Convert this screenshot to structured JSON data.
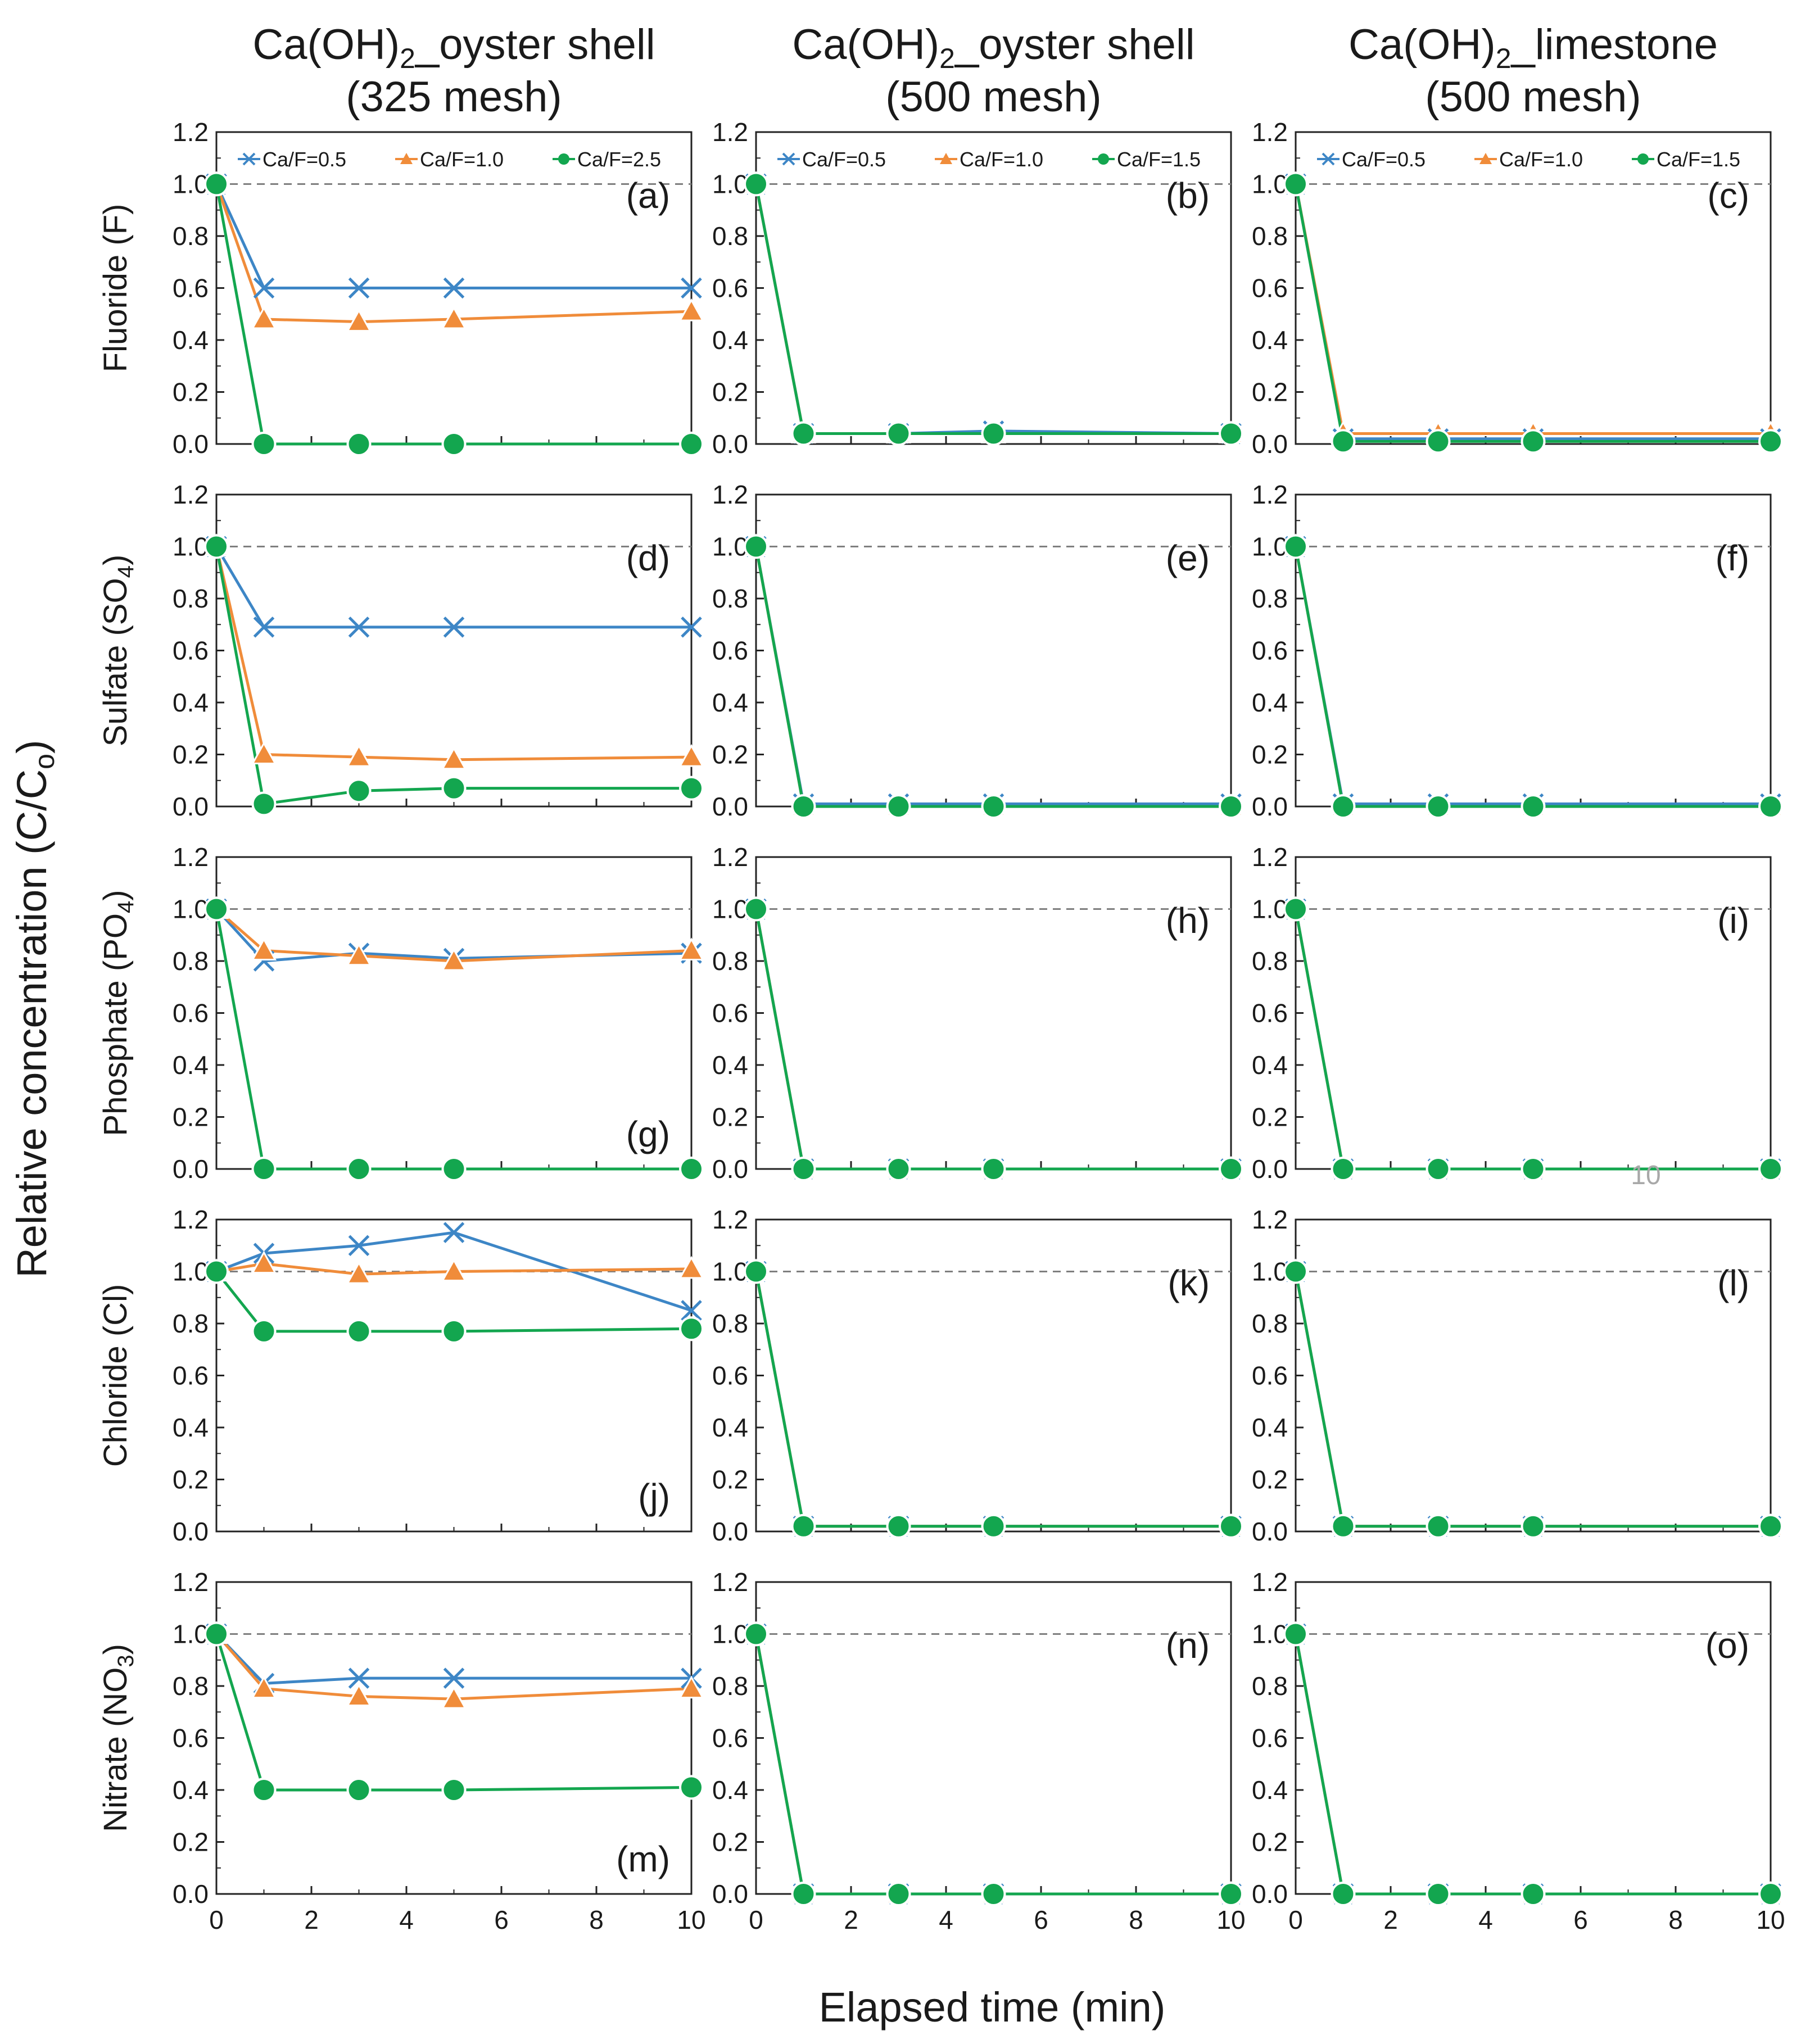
{
  "figure": {
    "y_axis_title": "Relative concentration (C/C",
    "y_axis_title_sub": "o",
    "y_axis_title_end": ")",
    "x_axis_title": "Elapsed time (min)",
    "stray_text": "10"
  },
  "columns": [
    {
      "title": "Ca(OH)",
      "title_sub": "2",
      "title_rest": "_oyster shell",
      "subtitle": "(325 mesh)"
    },
    {
      "title": "Ca(OH)",
      "title_sub": "2",
      "title_rest": "_oyster shell",
      "subtitle": "(500 mesh)"
    },
    {
      "title": "Ca(OH)",
      "title_sub": "2",
      "title_rest": "_limestone",
      "subtitle": "(500 mesh)"
    }
  ],
  "rows": [
    {
      "label": "Fluoride (F)",
      "label_sub": "",
      "label_end": ""
    },
    {
      "label": "Sulfate (SO",
      "label_sub": "4",
      "label_end": ")"
    },
    {
      "label": "Phosphate (PO",
      "label_sub": "4",
      "label_end": ")"
    },
    {
      "label": "Chloride (Cl)",
      "label_sub": "",
      "label_end": ""
    },
    {
      "label": "Nitrate (NO",
      "label_sub": "3",
      "label_end": ")"
    }
  ],
  "colors": {
    "series_0_5": "#3d86c6",
    "series_1_0": "#f08c3a",
    "series_high": "#13a64f",
    "reference_line": "#7f7f7f"
  },
  "chart_data": {
    "type": "line",
    "layout": "5 rows x 3 columns of panels",
    "x": [
      0,
      1,
      3,
      5,
      10
    ],
    "xlim": [
      0,
      10
    ],
    "xticks": [
      "0",
      "2",
      "4",
      "6",
      "8",
      "10"
    ],
    "ylim": [
      0,
      1.2
    ],
    "yticks": [
      "0.0",
      "0.2",
      "0.4",
      "0.6",
      "0.8",
      "1.0",
      "1.2"
    ],
    "reference_line_y": 1.0,
    "grid": false,
    "legend_location": "top inside panel, first row only",
    "panels": [
      {
        "label": "(a)",
        "label_pos": "top-right",
        "legend": true,
        "series": [
          {
            "name": "Ca/F=0.5",
            "marker": "x",
            "values": [
              1.0,
              0.6,
              0.6,
              0.6,
              0.6
            ]
          },
          {
            "name": "Ca/F=1.0",
            "marker": "triangle",
            "values": [
              1.0,
              0.48,
              0.47,
              0.48,
              0.51
            ]
          },
          {
            "name": "Ca/F=2.5",
            "marker": "circle",
            "values": [
              1.0,
              0.0,
              0.0,
              0.0,
              0.0
            ]
          }
        ]
      },
      {
        "label": "(b)",
        "label_pos": "top-right",
        "legend": true,
        "series": [
          {
            "name": "Ca/F=0.5",
            "marker": "x",
            "values": [
              1.0,
              0.04,
              0.04,
              0.05,
              0.04
            ]
          },
          {
            "name": "Ca/F=1.0",
            "marker": "triangle",
            "values": [
              1.0,
              0.04,
              0.04,
              0.04,
              0.04
            ]
          },
          {
            "name": "Ca/F=1.5",
            "marker": "circle",
            "values": [
              1.0,
              0.04,
              0.04,
              0.04,
              0.04
            ]
          }
        ]
      },
      {
        "label": "(c)",
        "label_pos": "top-right",
        "legend": true,
        "series": [
          {
            "name": "Ca/F=0.5",
            "marker": "x",
            "values": [
              1.0,
              0.02,
              0.02,
              0.02,
              0.02
            ]
          },
          {
            "name": "Ca/F=1.0",
            "marker": "triangle",
            "values": [
              1.0,
              0.04,
              0.04,
              0.04,
              0.04
            ]
          },
          {
            "name": "Ca/F=1.5",
            "marker": "circle",
            "values": [
              1.0,
              0.01,
              0.01,
              0.01,
              0.01
            ]
          }
        ]
      },
      {
        "label": "(d)",
        "label_pos": "top-right",
        "legend": false,
        "series": [
          {
            "name": "Ca/F=0.5",
            "marker": "x",
            "values": [
              1.0,
              0.69,
              0.69,
              0.69,
              0.69
            ]
          },
          {
            "name": "Ca/F=1.0",
            "marker": "triangle",
            "values": [
              1.0,
              0.2,
              0.19,
              0.18,
              0.19
            ]
          },
          {
            "name": "Ca/F=2.5",
            "marker": "circle",
            "values": [
              1.0,
              0.01,
              0.06,
              0.07,
              0.07
            ]
          }
        ]
      },
      {
        "label": "(e)",
        "label_pos": "top-right",
        "legend": false,
        "series": [
          {
            "name": "Ca/F=0.5",
            "marker": "x",
            "values": [
              1.0,
              0.01,
              0.01,
              0.01,
              0.01
            ]
          },
          {
            "name": "Ca/F=1.0",
            "marker": "triangle",
            "values": [
              1.0,
              0.0,
              0.0,
              0.0,
              0.0
            ]
          },
          {
            "name": "Ca/F=1.5",
            "marker": "circle",
            "values": [
              1.0,
              0.0,
              0.0,
              0.0,
              0.0
            ]
          }
        ]
      },
      {
        "label": "(f)",
        "label_pos": "top-right",
        "legend": false,
        "series": [
          {
            "name": "Ca/F=0.5",
            "marker": "x",
            "values": [
              1.0,
              0.01,
              0.01,
              0.01,
              0.01
            ]
          },
          {
            "name": "Ca/F=1.0",
            "marker": "triangle",
            "values": [
              1.0,
              0.0,
              0.0,
              0.0,
              0.0
            ]
          },
          {
            "name": "Ca/F=1.5",
            "marker": "circle",
            "values": [
              1.0,
              0.0,
              0.0,
              0.0,
              0.0
            ]
          }
        ]
      },
      {
        "label": "(g)",
        "label_pos": "bottom-right",
        "legend": false,
        "series": [
          {
            "name": "Ca/F=0.5",
            "marker": "x",
            "values": [
              1.0,
              0.8,
              0.83,
              0.81,
              0.83
            ]
          },
          {
            "name": "Ca/F=1.0",
            "marker": "triangle",
            "values": [
              1.0,
              0.84,
              0.82,
              0.8,
              0.84
            ]
          },
          {
            "name": "Ca/F=2.5",
            "marker": "circle",
            "values": [
              1.0,
              0.0,
              0.0,
              0.0,
              0.0
            ]
          }
        ]
      },
      {
        "label": "(h)",
        "label_pos": "top-right",
        "legend": false,
        "series": [
          {
            "name": "Ca/F=0.5",
            "marker": "x",
            "values": [
              1.0,
              0.0,
              0.0,
              0.0,
              0.0
            ]
          },
          {
            "name": "Ca/F=1.0",
            "marker": "triangle",
            "values": [
              1.0,
              0.0,
              0.0,
              0.0,
              0.0
            ]
          },
          {
            "name": "Ca/F=1.5",
            "marker": "circle",
            "values": [
              1.0,
              0.0,
              0.0,
              0.0,
              0.0
            ]
          }
        ]
      },
      {
        "label": "(i)",
        "label_pos": "top-right",
        "legend": false,
        "series": [
          {
            "name": "Ca/F=0.5",
            "marker": "x",
            "values": [
              1.0,
              0.0,
              0.0,
              0.0,
              0.0
            ]
          },
          {
            "name": "Ca/F=1.0",
            "marker": "triangle",
            "values": [
              1.0,
              0.0,
              0.0,
              0.0,
              0.0
            ]
          },
          {
            "name": "Ca/F=1.5",
            "marker": "circle",
            "values": [
              1.0,
              0.0,
              0.0,
              0.0,
              0.0
            ]
          }
        ]
      },
      {
        "label": "(j)",
        "label_pos": "bottom-right",
        "legend": false,
        "series": [
          {
            "name": "Ca/F=0.5",
            "marker": "x",
            "values": [
              1.0,
              1.07,
              1.1,
              1.15,
              0.85
            ]
          },
          {
            "name": "Ca/F=1.0",
            "marker": "triangle",
            "values": [
              1.0,
              1.03,
              0.99,
              1.0,
              1.01
            ]
          },
          {
            "name": "Ca/F=2.5",
            "marker": "circle",
            "values": [
              1.0,
              0.77,
              0.77,
              0.77,
              0.78
            ]
          }
        ]
      },
      {
        "label": "(k)",
        "label_pos": "top-right",
        "legend": false,
        "series": [
          {
            "name": "Ca/F=0.5",
            "marker": "x",
            "values": [
              1.0,
              0.02,
              0.02,
              0.02,
              0.02
            ]
          },
          {
            "name": "Ca/F=1.0",
            "marker": "triangle",
            "values": [
              1.0,
              0.02,
              0.02,
              0.02,
              0.02
            ]
          },
          {
            "name": "Ca/F=1.5",
            "marker": "circle",
            "values": [
              1.0,
              0.02,
              0.02,
              0.02,
              0.02
            ]
          }
        ]
      },
      {
        "label": "(l)",
        "label_pos": "top-right",
        "legend": false,
        "series": [
          {
            "name": "Ca/F=0.5",
            "marker": "x",
            "values": [
              1.0,
              0.02,
              0.02,
              0.02,
              0.02
            ]
          },
          {
            "name": "Ca/F=1.0",
            "marker": "triangle",
            "values": [
              1.0,
              0.02,
              0.02,
              0.02,
              0.02
            ]
          },
          {
            "name": "Ca/F=1.5",
            "marker": "circle",
            "values": [
              1.0,
              0.02,
              0.02,
              0.02,
              0.02
            ]
          }
        ]
      },
      {
        "label": "(m)",
        "label_pos": "bottom-right",
        "legend": false,
        "series": [
          {
            "name": "Ca/F=0.5",
            "marker": "x",
            "values": [
              1.0,
              0.81,
              0.83,
              0.83,
              0.83
            ]
          },
          {
            "name": "Ca/F=1.0",
            "marker": "triangle",
            "values": [
              1.0,
              0.79,
              0.76,
              0.75,
              0.79
            ]
          },
          {
            "name": "Ca/F=2.5",
            "marker": "circle",
            "values": [
              1.0,
              0.4,
              0.4,
              0.4,
              0.41
            ]
          }
        ]
      },
      {
        "label": "(n)",
        "label_pos": "top-right",
        "legend": false,
        "series": [
          {
            "name": "Ca/F=0.5",
            "marker": "x",
            "values": [
              1.0,
              0.0,
              0.0,
              0.0,
              0.0
            ]
          },
          {
            "name": "Ca/F=1.0",
            "marker": "triangle",
            "values": [
              1.0,
              0.0,
              0.0,
              0.0,
              0.0
            ]
          },
          {
            "name": "Ca/F=1.5",
            "marker": "circle",
            "values": [
              1.0,
              0.0,
              0.0,
              0.0,
              0.0
            ]
          }
        ]
      },
      {
        "label": "(o)",
        "label_pos": "top-right",
        "legend": false,
        "series": [
          {
            "name": "Ca/F=0.5",
            "marker": "x",
            "values": [
              1.0,
              0.0,
              0.0,
              0.0,
              0.0
            ]
          },
          {
            "name": "Ca/F=1.0",
            "marker": "triangle",
            "values": [
              1.0,
              0.0,
              0.0,
              0.0,
              0.0
            ]
          },
          {
            "name": "Ca/F=1.5",
            "marker": "circle",
            "values": [
              1.0,
              0.0,
              0.0,
              0.0,
              0.0
            ]
          }
        ]
      }
    ]
  }
}
